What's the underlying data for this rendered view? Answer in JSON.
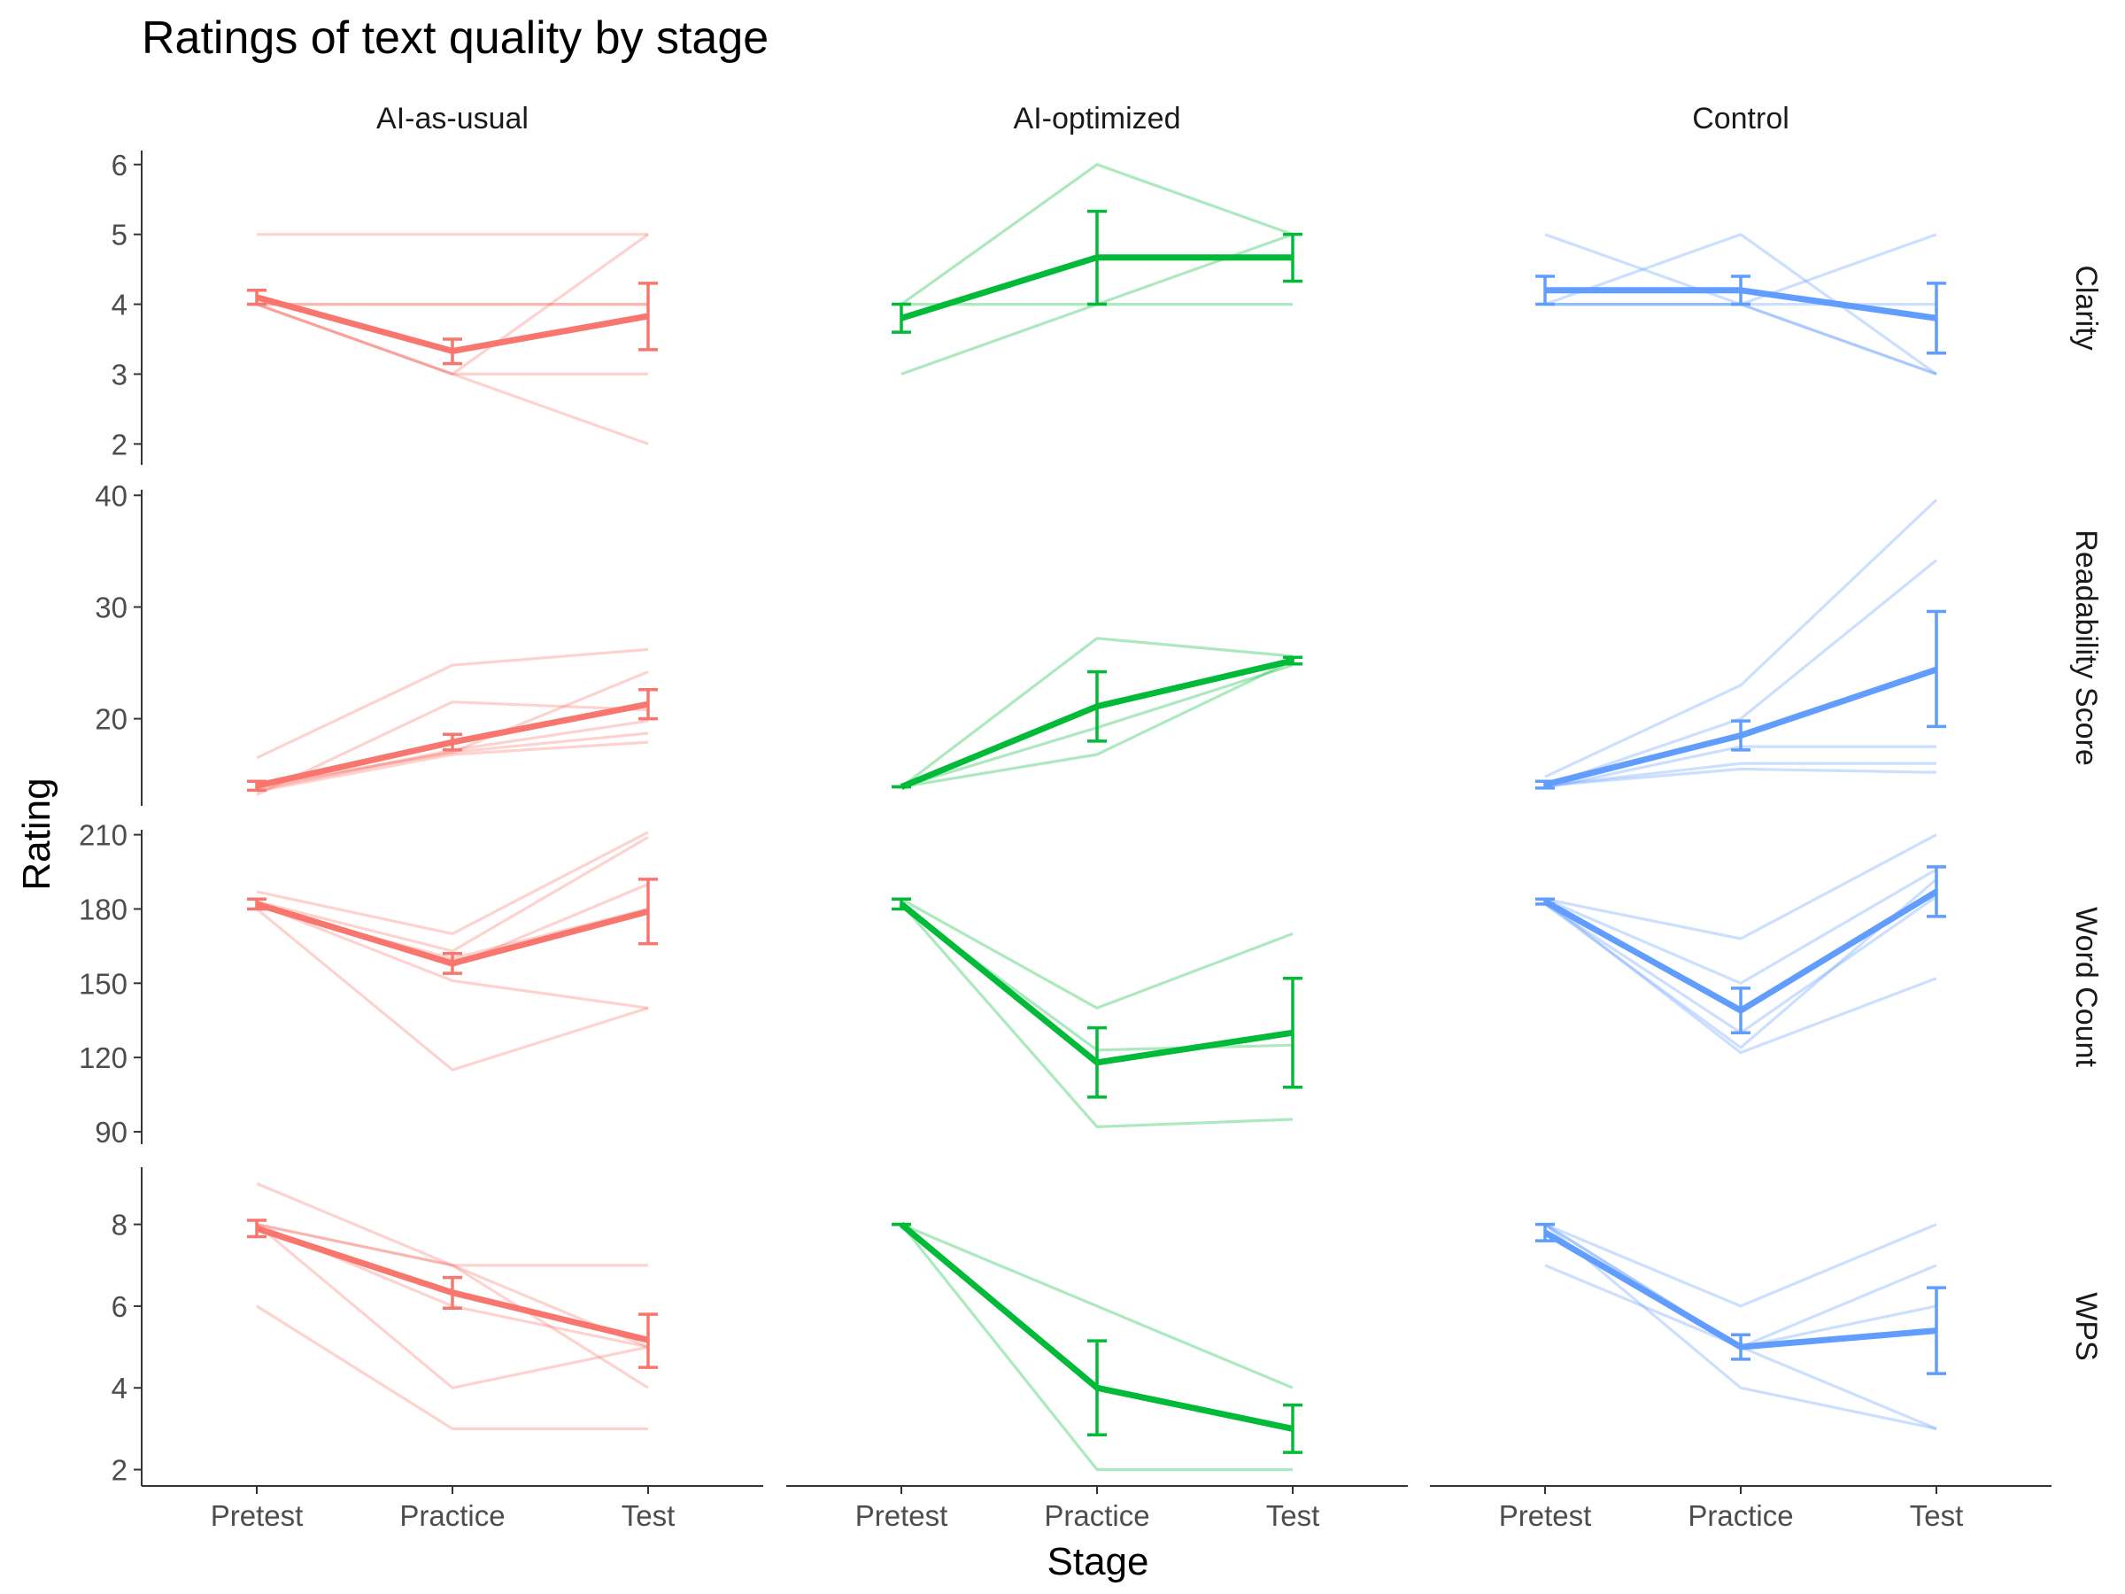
{
  "chart_data": {
    "type": "line",
    "title": "Ratings of text quality by stage",
    "xlabel": "Stage",
    "ylabel": "Rating",
    "x": [
      "Pretest",
      "Practice",
      "Test"
    ],
    "columns": [
      "AI-as-usual",
      "AI-optimized",
      "Control"
    ],
    "rows": [
      {
        "name": "Clarity",
        "ylim": [
          1.7,
          6.2
        ],
        "ticks": [
          "2",
          "3",
          "4",
          "5",
          "6"
        ],
        "tick_values": [
          2,
          3,
          4,
          5,
          6
        ]
      },
      {
        "name": "Readability Score",
        "ylim": [
          12.2,
          40.5
        ],
        "ticks": [
          "20",
          "30",
          "40"
        ],
        "tick_values": [
          20,
          30,
          40
        ]
      },
      {
        "name": "Word Count",
        "ylim": [
          85,
          212
        ],
        "ticks": [
          "90",
          "120",
          "150",
          "180",
          "210"
        ],
        "tick_values": [
          90,
          120,
          150,
          180,
          210
        ]
      },
      {
        "name": "WPS",
        "ylim": [
          1.6,
          9.4
        ],
        "ticks": [
          "2",
          "4",
          "6",
          "8"
        ],
        "tick_values": [
          2,
          4,
          6,
          8
        ]
      }
    ],
    "colors": {
      "AI-as-usual": "#F8766D",
      "AI-optimized": "#00BA38",
      "Control": "#619CFF"
    },
    "panels": [
      {
        "column": "AI-as-usual",
        "row": "Clarity",
        "individuals": [
          [
            5,
            5,
            5
          ],
          [
            4,
            4,
            4
          ],
          [
            4,
            3,
            5
          ],
          [
            4,
            3,
            3
          ],
          [
            4,
            3,
            2
          ],
          [
            4,
            4,
            4
          ]
        ],
        "mean": [
          4.1,
          3.33,
          3.83
        ],
        "error": [
          [
            4.0,
            4.2
          ],
          [
            3.15,
            3.5
          ],
          [
            3.35,
            4.3
          ]
        ]
      },
      {
        "column": "AI-optimized",
        "row": "Clarity",
        "individuals": [
          [
            4,
            6,
            5
          ],
          [
            3,
            4,
            5
          ],
          [
            4,
            4,
            4
          ]
        ],
        "mean": [
          3.8,
          4.67,
          4.67
        ],
        "error": [
          [
            3.6,
            4.0
          ],
          [
            4.0,
            5.33
          ],
          [
            4.33,
            5.0
          ]
        ]
      },
      {
        "column": "Control",
        "row": "Clarity",
        "individuals": [
          [
            5,
            4,
            3
          ],
          [
            4,
            5,
            3
          ],
          [
            4,
            4,
            5
          ],
          [
            4,
            4,
            4
          ],
          [
            4,
            4,
            3
          ]
        ],
        "mean": [
          4.2,
          4.2,
          3.8
        ],
        "error": [
          [
            4.0,
            4.4
          ],
          [
            4.0,
            4.4
          ],
          [
            3.3,
            4.3
          ]
        ]
      },
      {
        "column": "AI-as-usual",
        "row": "Readability Score",
        "individuals": [
          [
            16.5,
            24.8,
            26.2
          ],
          [
            13.2,
            21.5,
            20.8
          ],
          [
            14.0,
            17.0,
            24.2
          ],
          [
            13.8,
            17.0,
            18.7
          ],
          [
            13.5,
            16.8,
            17.9
          ],
          [
            13.6,
            17.2,
            19.8
          ]
        ],
        "mean": [
          14.0,
          17.9,
          21.3
        ],
        "error": [
          [
            13.6,
            14.4
          ],
          [
            17.2,
            18.6
          ],
          [
            20.0,
            22.6
          ]
        ]
      },
      {
        "column": "AI-optimized",
        "row": "Readability Score",
        "individuals": [
          [
            13.9,
            27.2,
            25.6
          ],
          [
            13.9,
            16.8,
            25.2
          ],
          [
            13.9,
            19.2,
            24.8
          ]
        ],
        "mean": [
          13.9,
          21.1,
          25.2
        ],
        "error": [
          [
            13.9,
            13.9
          ],
          [
            18.0,
            24.2
          ],
          [
            24.9,
            25.5
          ]
        ]
      },
      {
        "column": "Control",
        "row": "Readability Score",
        "individuals": [
          [
            14.8,
            23.0,
            39.6
          ],
          [
            14.0,
            20.0,
            34.2
          ],
          [
            13.8,
            17.5,
            17.5
          ],
          [
            14.0,
            16.0,
            16.0
          ],
          [
            14.0,
            15.5,
            15.2
          ]
        ],
        "mean": [
          14.1,
          18.5,
          24.4
        ],
        "error": [
          [
            13.8,
            14.4
          ],
          [
            17.2,
            19.8
          ],
          [
            19.3,
            29.6
          ]
        ]
      },
      {
        "column": "AI-as-usual",
        "row": "Word Count",
        "individuals": [
          [
            187,
            170,
            211
          ],
          [
            183,
            163,
            209
          ],
          [
            180,
            115,
            140
          ],
          [
            182,
            151,
            140
          ],
          [
            181,
            160,
            180
          ],
          [
            182,
            157,
            190
          ]
        ],
        "mean": [
          182,
          158,
          179
        ],
        "error": [
          [
            180,
            184
          ],
          [
            154,
            162
          ],
          [
            166,
            192
          ]
        ]
      },
      {
        "column": "AI-optimized",
        "row": "Word Count",
        "individuals": [
          [
            184,
            140,
            170
          ],
          [
            182,
            92,
            95
          ],
          [
            181,
            123,
            125
          ]
        ],
        "mean": [
          182,
          118,
          130
        ],
        "error": [
          [
            180,
            184
          ],
          [
            104,
            132
          ],
          [
            108,
            152
          ]
        ]
      },
      {
        "column": "Control",
        "row": "Word Count",
        "individuals": [
          [
            184,
            168,
            210
          ],
          [
            184,
            150,
            196
          ],
          [
            183,
            122,
            152
          ],
          [
            182,
            124,
            192
          ],
          [
            182,
            130,
            185
          ]
        ],
        "mean": [
          183,
          139,
          187
        ],
        "error": [
          [
            182,
            184
          ],
          [
            130,
            148
          ],
          [
            177,
            197
          ]
        ]
      },
      {
        "column": "AI-as-usual",
        "row": "WPS",
        "individuals": [
          [
            9,
            7,
            7
          ],
          [
            8,
            7,
            5
          ],
          [
            8,
            4,
            5
          ],
          [
            6,
            3,
            3
          ],
          [
            8,
            7,
            4
          ],
          [
            8,
            6,
            5
          ]
        ],
        "mean": [
          7.9,
          6.33,
          5.17
        ],
        "error": [
          [
            7.7,
            8.1
          ],
          [
            5.95,
            6.7
          ],
          [
            4.5,
            5.8
          ]
        ]
      },
      {
        "column": "AI-optimized",
        "row": "WPS",
        "individuals": [
          [
            8,
            6,
            4
          ],
          [
            8,
            2,
            2
          ],
          [
            8,
            4,
            3
          ]
        ],
        "mean": [
          8.0,
          4.0,
          3.0
        ],
        "error": [
          [
            8.0,
            8.0
          ],
          [
            2.85,
            5.15
          ],
          [
            2.42,
            3.58
          ]
        ]
      },
      {
        "column": "Control",
        "row": "WPS",
        "individuals": [
          [
            8,
            6,
            8
          ],
          [
            8,
            5,
            7
          ],
          [
            7,
            5,
            3
          ],
          [
            8,
            4,
            3
          ],
          [
            8,
            5,
            6
          ]
        ],
        "mean": [
          7.8,
          5.0,
          5.4
        ],
        "error": [
          [
            7.6,
            8.0
          ],
          [
            4.7,
            5.3
          ],
          [
            4.35,
            6.45
          ]
        ]
      }
    ],
    "grid": false,
    "legend": "none"
  }
}
